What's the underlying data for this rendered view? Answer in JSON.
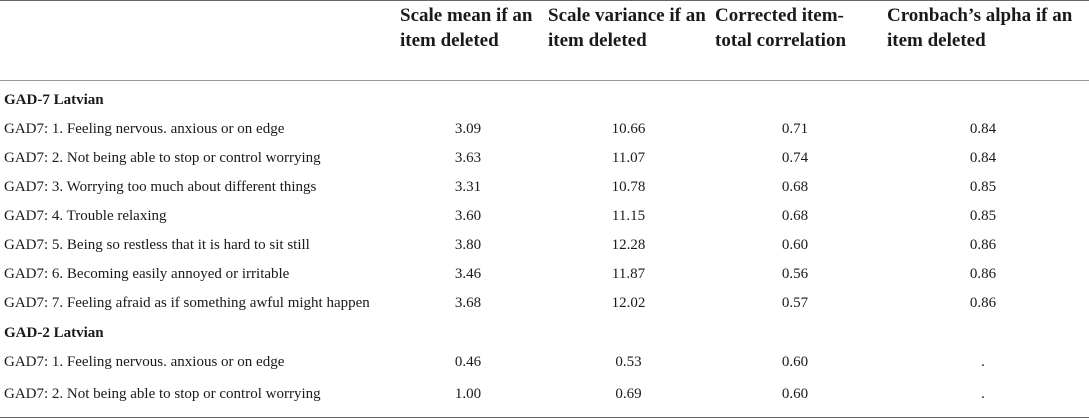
{
  "table": {
    "headers": {
      "item": "",
      "mean": "Scale mean if an item deleted",
      "variance": "Scale variance if an item deleted",
      "correlation": "Corrected item-total correlation",
      "alpha": "Cronbach’s alpha if an item deleted"
    },
    "groups": [
      {
        "title": "GAD-7 Latvian",
        "rows": [
          {
            "item": "GAD7: 1. Feeling nervous. anxious or on edge",
            "mean": "3.09",
            "variance": "10.66",
            "correlation": "0.71",
            "alpha": "0.84"
          },
          {
            "item": "GAD7: 2. Not being able to stop or control worrying",
            "mean": "3.63",
            "variance": "11.07",
            "correlation": "0.74",
            "alpha": "0.84"
          },
          {
            "item": "GAD7: 3. Worrying too much about different things",
            "mean": "3.31",
            "variance": "10.78",
            "correlation": "0.68",
            "alpha": "0.85"
          },
          {
            "item": "GAD7: 4. Trouble relaxing",
            "mean": "3.60",
            "variance": "11.15",
            "correlation": "0.68",
            "alpha": "0.85"
          },
          {
            "item": "GAD7: 5. Being so restless that it is hard to sit still",
            "mean": "3.80",
            "variance": "12.28",
            "correlation": "0.60",
            "alpha": "0.86"
          },
          {
            "item": "GAD7: 6. Becoming easily annoyed or irritable",
            "mean": "3.46",
            "variance": "11.87",
            "correlation": "0.56",
            "alpha": "0.86"
          },
          {
            "item": "GAD7: 7. Feeling afraid as if something awful might happen",
            "mean": "3.68",
            "variance": "12.02",
            "correlation": "0.57",
            "alpha": "0.86"
          }
        ]
      },
      {
        "title": "GAD-2 Latvian",
        "rows": [
          {
            "item": "GAD7: 1. Feeling nervous. anxious or on edge",
            "mean": "0.46",
            "variance": "0.53",
            "correlation": "0.60",
            "alpha": "."
          },
          {
            "item": "GAD7: 2. Not being able to stop or control worrying",
            "mean": "1.00",
            "variance": "0.69",
            "correlation": "0.60",
            "alpha": "."
          }
        ]
      }
    ]
  }
}
